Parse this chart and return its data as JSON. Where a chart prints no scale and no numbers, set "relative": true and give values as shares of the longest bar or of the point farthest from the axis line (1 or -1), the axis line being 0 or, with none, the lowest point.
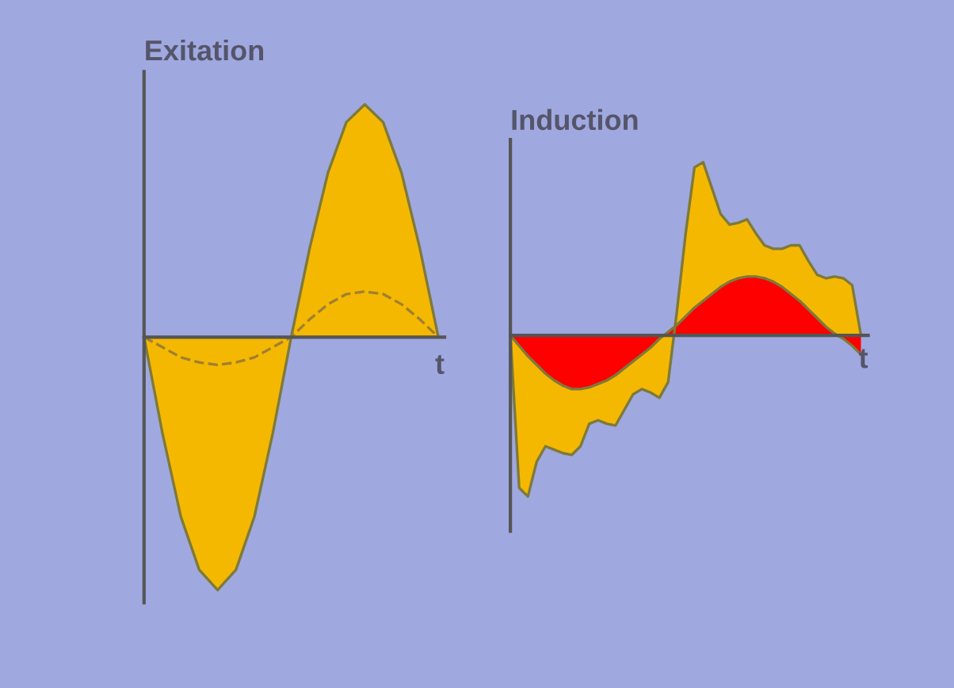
{
  "chart_data": [
    {
      "type": "area",
      "title": "Exitation",
      "xlabel": "t",
      "relative": true,
      "categories": [
        null,
        null,
        null,
        null,
        null,
        null,
        null,
        null,
        null,
        null,
        null,
        null,
        null,
        null,
        null,
        null,
        null
      ],
      "series": [
        {
          "color": "#f5b800",
          "values": [
            0,
            -0.38,
            -0.71,
            -0.92,
            -1,
            -0.92,
            -0.71,
            -0.38,
            0,
            0.35,
            0.65,
            0.85,
            0.92,
            0.85,
            0.65,
            0.35,
            0
          ]
        },
        {
          "type": "line",
          "line_style": "dashed",
          "color": "#a08030",
          "values": [
            0,
            -0.04,
            -0.08,
            -0.1,
            -0.11,
            -0.1,
            -0.08,
            -0.04,
            0,
            0.07,
            0.13,
            0.17,
            0.18,
            0.17,
            0.13,
            0.07,
            0
          ]
        }
      ]
    },
    {
      "type": "area",
      "title": "Induction",
      "xlabel": "t",
      "relative": true,
      "categories": [
        null,
        null,
        null,
        null,
        null,
        null,
        null,
        null,
        null,
        null,
        null,
        null,
        null,
        null,
        null,
        null,
        null,
        null,
        null,
        null,
        null,
        null,
        null,
        null,
        null,
        null,
        null,
        null,
        null,
        null,
        null,
        null,
        null,
        null,
        null,
        null,
        null,
        null,
        null,
        null,
        null
      ],
      "series": [
        {
          "color": "#f5b800",
          "values": [
            0,
            -0.88,
            -0.93,
            -0.73,
            -0.64,
            -0.66,
            -0.68,
            -0.69,
            -0.64,
            -0.51,
            -0.49,
            -0.51,
            -0.52,
            -0.43,
            -0.34,
            -0.31,
            -0.33,
            -0.36,
            -0.27,
            0.14,
            0.59,
            0.97,
            1.0,
            0.85,
            0.7,
            0.64,
            0.65,
            0.67,
            0.59,
            0.52,
            0.5,
            0.5,
            0.52,
            0.52,
            0.43,
            0.35,
            0.33,
            0.34,
            0.33,
            0.29,
            0
          ]
        },
        {
          "color": "#ff0000",
          "values": [
            0,
            -0.06,
            -0.12,
            -0.17,
            -0.22,
            -0.26,
            -0.29,
            -0.31,
            -0.31,
            -0.3,
            -0.28,
            -0.26,
            -0.23,
            -0.19,
            -0.15,
            -0.11,
            -0.07,
            -0.02,
            0.02,
            0.06,
            0.11,
            0.16,
            0.2,
            0.24,
            0.28,
            0.31,
            0.33,
            0.34,
            0.34,
            0.33,
            0.31,
            0.28,
            0.24,
            0.2,
            0.15,
            0.1,
            0.05,
            0.01,
            -0.02,
            -0.06,
            -0.11
          ]
        }
      ]
    }
  ]
}
